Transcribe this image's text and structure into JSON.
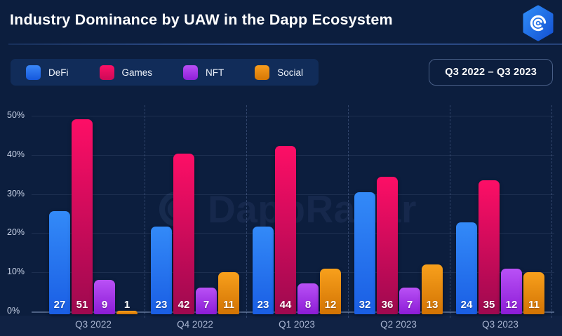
{
  "header": {
    "title": "Industry Dominance by UAW in the Dapp Ecosystem",
    "logo": "dappradar-hexagon-logo"
  },
  "controls": {
    "legend": [
      {
        "label": "DeFi",
        "swatch_top": "#3a87f8",
        "swatch_bottom": "#1558dd"
      },
      {
        "label": "Games",
        "swatch_top": "#fd1066",
        "swatch_bottom": "#cc0a57"
      },
      {
        "label": "NFT",
        "swatch_top": "#b94ff5",
        "swatch_bottom": "#8e1fd8"
      },
      {
        "label": "Social",
        "swatch_top": "#f79c1d",
        "swatch_bottom": "#d57705"
      }
    ],
    "period_badge": "Q3 2022 – Q3 2023"
  },
  "watermark": {
    "text": "DappRadar"
  },
  "chart_data": {
    "type": "bar",
    "title": "Industry Dominance by UAW in the Dapp Ecosystem",
    "categories": [
      "Q3 2022",
      "Q4 2022",
      "Q1 2023",
      "Q2 2023",
      "Q3 2023"
    ],
    "series": [
      {
        "name": "DeFi",
        "color_top": "#338af8",
        "color_bottom": "#1a5ee4",
        "values": [
          27,
          23,
          23,
          32,
          24
        ]
      },
      {
        "name": "Games",
        "color_top": "#fd0e66",
        "color_bottom": "#9e094f",
        "values": [
          51,
          42,
          44,
          36,
          35
        ]
      },
      {
        "name": "NFT",
        "color_top": "#b951f6",
        "color_bottom": "#8c1cd6",
        "values": [
          9,
          7,
          8,
          7,
          12
        ]
      },
      {
        "name": "Social",
        "color_top": "#f8a01c",
        "color_bottom": "#d27303",
        "values": [
          1,
          11,
          12,
          13,
          11
        ]
      }
    ],
    "xlabel": "",
    "ylabel": "",
    "y_ticks": [
      "0%",
      "10%",
      "20%",
      "30%",
      "40%",
      "50%"
    ],
    "ylim": [
      0,
      50
    ],
    "grid": true,
    "group_separators": "dashed-vertical",
    "legend_position": "top-left",
    "value_labels": true,
    "period": "Q3 2022 – Q3 2023",
    "value_label_color": "#ffffff",
    "background_color": "#0c1e3e"
  }
}
